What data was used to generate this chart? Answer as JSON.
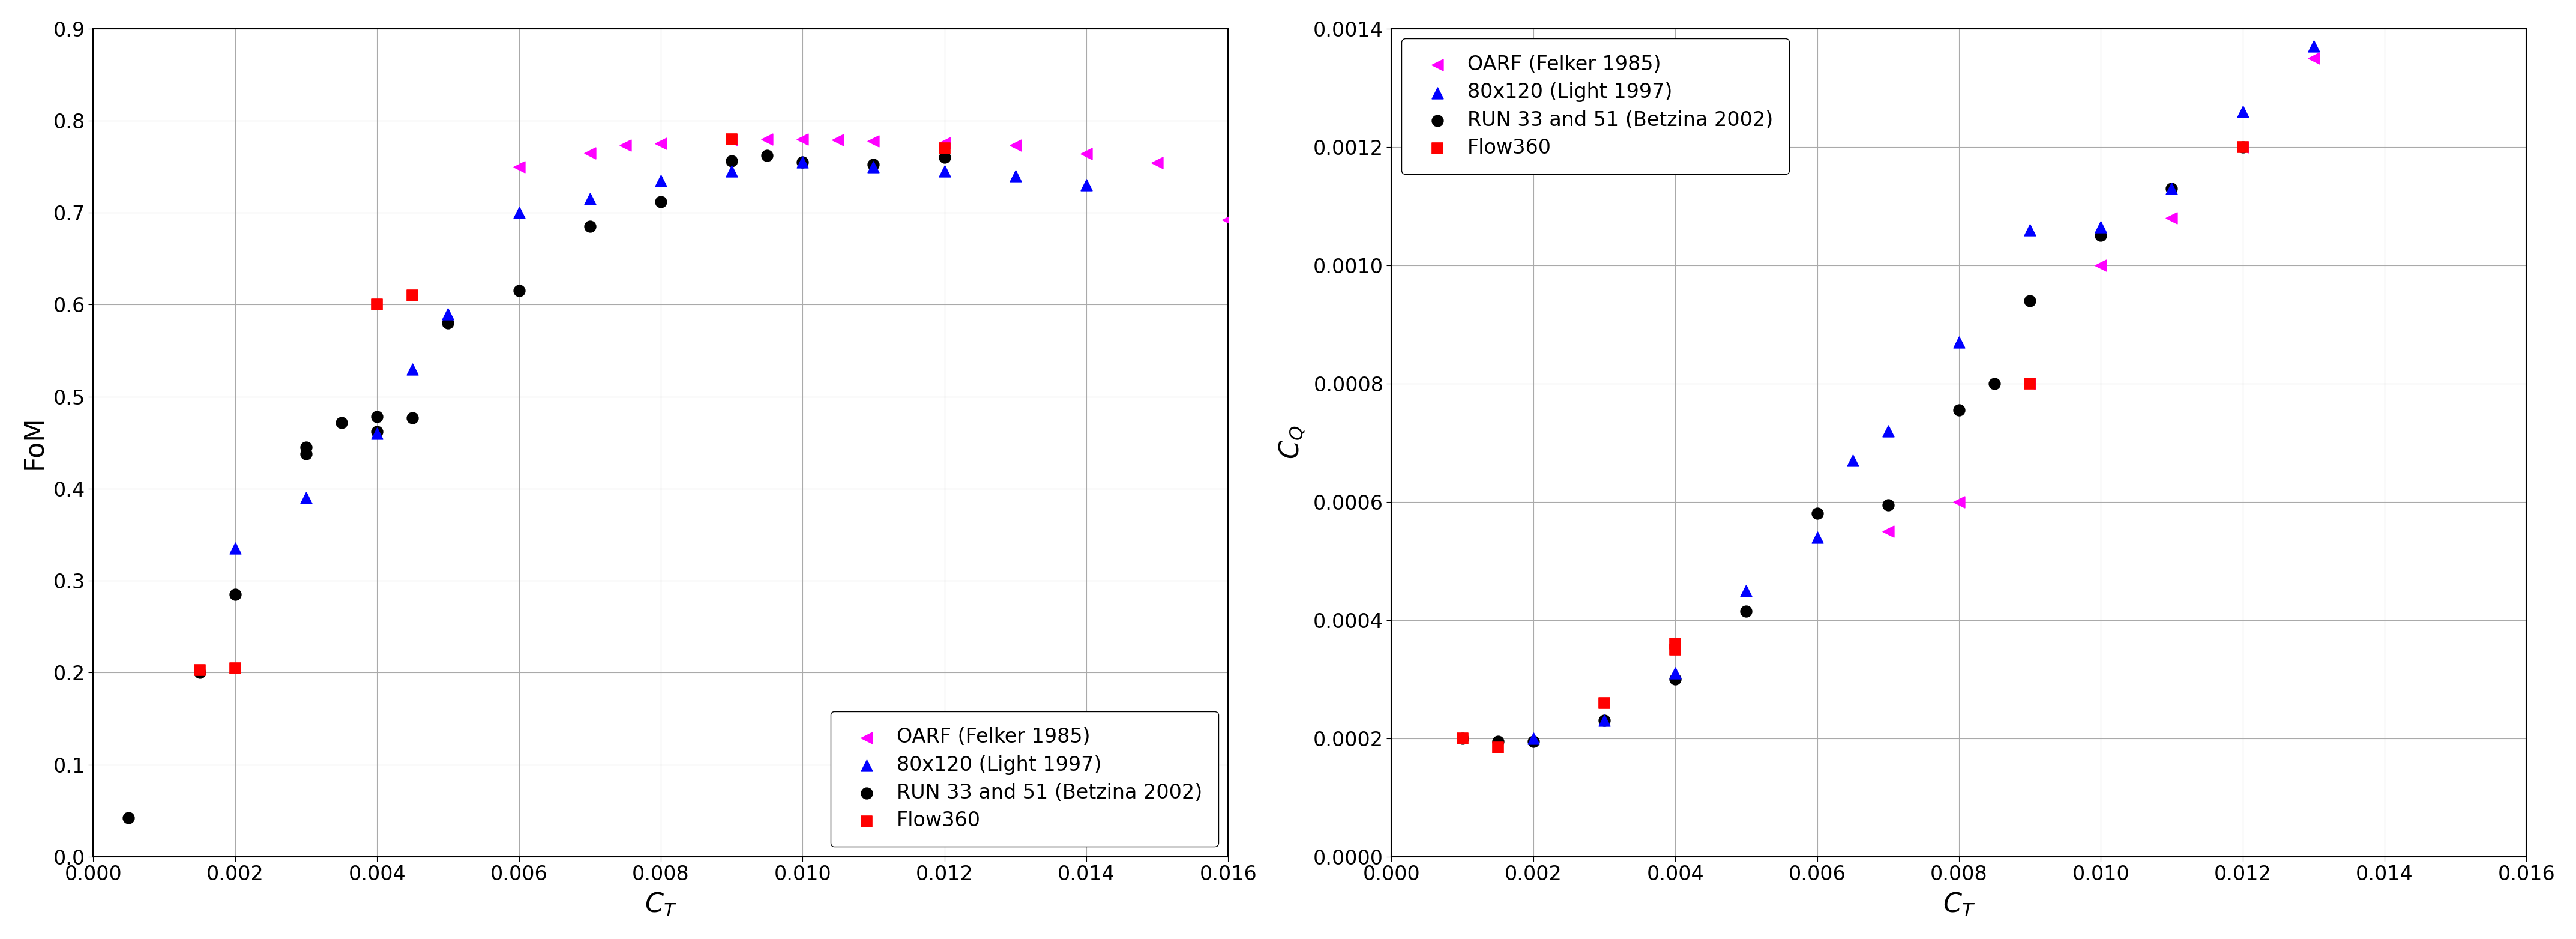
{
  "fom_oarf_ct": [
    0.006,
    0.007,
    0.0075,
    0.008,
    0.009,
    0.0095,
    0.01,
    0.0105,
    0.011,
    0.012,
    0.013,
    0.014,
    0.015,
    0.016
  ],
  "fom_oarf_fom": [
    0.75,
    0.765,
    0.773,
    0.775,
    0.779,
    0.78,
    0.78,
    0.779,
    0.778,
    0.776,
    0.773,
    0.764,
    0.754,
    0.692
  ],
  "fom_light_ct": [
    0.002,
    0.003,
    0.004,
    0.0045,
    0.005,
    0.006,
    0.007,
    0.008,
    0.009,
    0.01,
    0.011,
    0.012,
    0.013,
    0.014
  ],
  "fom_light_fom": [
    0.335,
    0.39,
    0.46,
    0.53,
    0.59,
    0.7,
    0.715,
    0.735,
    0.745,
    0.755,
    0.75,
    0.745,
    0.74,
    0.73
  ],
  "fom_betz_ct": [
    0.0005,
    0.0015,
    0.002,
    0.003,
    0.003,
    0.0035,
    0.004,
    0.004,
    0.0045,
    0.005,
    0.006,
    0.007,
    0.008,
    0.009,
    0.0095,
    0.01,
    0.011,
    0.012
  ],
  "fom_betz_fom": [
    0.042,
    0.2,
    0.285,
    0.438,
    0.445,
    0.472,
    0.462,
    0.478,
    0.477,
    0.58,
    0.615,
    0.685,
    0.712,
    0.756,
    0.762,
    0.755,
    0.752,
    0.76
  ],
  "fom_flow360_ct": [
    0.0015,
    0.002,
    0.004,
    0.0045,
    0.009,
    0.012
  ],
  "fom_flow360_fom": [
    0.203,
    0.205,
    0.6,
    0.61,
    0.78,
    0.77
  ],
  "cq_oarf_ct": [
    0.007,
    0.008,
    0.009,
    0.01,
    0.011,
    0.012,
    0.013
  ],
  "cq_oarf_cq": [
    0.00055,
    0.0006,
    0.0008,
    0.001,
    0.00108,
    0.0012,
    0.00135
  ],
  "cq_light_ct": [
    0.002,
    0.003,
    0.004,
    0.005,
    0.006,
    0.0065,
    0.007,
    0.008,
    0.009,
    0.01,
    0.011,
    0.012,
    0.013
  ],
  "cq_light_cq": [
    0.0002,
    0.00023,
    0.00031,
    0.00045,
    0.00054,
    0.00067,
    0.00072,
    0.00087,
    0.00106,
    0.001065,
    0.00113,
    0.00126,
    0.00137
  ],
  "cq_betz_ct": [
    0.001,
    0.0015,
    0.002,
    0.003,
    0.004,
    0.005,
    0.006,
    0.007,
    0.008,
    0.0085,
    0.009,
    0.01,
    0.011,
    0.012
  ],
  "cq_betz_cq": [
    0.0002,
    0.000195,
    0.000195,
    0.00023,
    0.0003,
    0.000415,
    0.00058,
    0.000595,
    0.000755,
    0.0008,
    0.00094,
    0.00105,
    0.00113,
    0.0012
  ],
  "cq_flow360_ct": [
    0.001,
    0.0015,
    0.003,
    0.004,
    0.004,
    0.009,
    0.012
  ],
  "cq_flow360_cq": [
    0.0002,
    0.000185,
    0.00026,
    0.00035,
    0.00036,
    0.0008,
    0.0012
  ],
  "oarf_color": "#FF00FF",
  "light_color": "#0000FF",
  "betz_color": "#000000",
  "flow360_color": "#FF0000",
  "fom_xlim": [
    0.0,
    0.016
  ],
  "fom_ylim": [
    0.0,
    0.9
  ],
  "fom_xticks": [
    0.0,
    0.002,
    0.004,
    0.006,
    0.008,
    0.01,
    0.012,
    0.014,
    0.016
  ],
  "fom_yticks": [
    0.0,
    0.1,
    0.2,
    0.3,
    0.4,
    0.5,
    0.6,
    0.7,
    0.8,
    0.9
  ],
  "fom_xlabel": "$C_T$",
  "fom_ylabel": "FoM",
  "cq_xlim": [
    0.0,
    0.016
  ],
  "cq_ylim": [
    0.0,
    0.0014
  ],
  "cq_xticks": [
    0.0,
    0.002,
    0.004,
    0.006,
    0.008,
    0.01,
    0.012,
    0.014,
    0.016
  ],
  "cq_yticks": [
    0.0,
    0.0002,
    0.0004,
    0.0006,
    0.0008,
    0.001,
    0.0012,
    0.0014
  ],
  "cq_xlabel": "$C_T$",
  "cq_ylabel": "$C_Q$"
}
